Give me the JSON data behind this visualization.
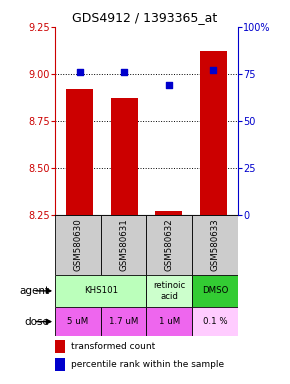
{
  "title": "GDS4912 / 1393365_at",
  "samples": [
    "GSM580630",
    "GSM580631",
    "GSM580632",
    "GSM580633"
  ],
  "bar_values": [
    8.92,
    8.87,
    8.27,
    9.12
  ],
  "bar_bottom": 8.25,
  "percentile_values": [
    76,
    76,
    69,
    77
  ],
  "ylim_left": [
    8.25,
    9.25
  ],
  "ylim_right": [
    0,
    100
  ],
  "yticks_left": [
    8.25,
    8.5,
    8.75,
    9.0,
    9.25
  ],
  "yticks_right": [
    0,
    25,
    50,
    75,
    100
  ],
  "ytick_labels_right": [
    "0",
    "25",
    "50",
    "75",
    "100%"
  ],
  "bar_color": "#cc0000",
  "dot_color": "#0000cc",
  "agent_data": [
    {
      "label": "KHS101",
      "start": 0,
      "end": 2,
      "color": "#bbffbb"
    },
    {
      "label": "retinoic\nacid",
      "start": 2,
      "end": 3,
      "color": "#ccffcc"
    },
    {
      "label": "DMSO",
      "start": 3,
      "end": 4,
      "color": "#33cc33"
    }
  ],
  "dose_labels": [
    "5 uM",
    "1.7 uM",
    "1 uM",
    "0.1 %"
  ],
  "dose_colors": [
    "#ee66ee",
    "#ee66ee",
    "#ee66ee",
    "#ffccff"
  ],
  "sample_bg_color": "#cccccc",
  "legend_red_label": "transformed count",
  "legend_blue_label": "percentile rank within the sample",
  "left_tick_color": "#cc0000",
  "right_tick_color": "#0000cc",
  "gridline_yvals": [
    9.0,
    8.75,
    8.5
  ]
}
